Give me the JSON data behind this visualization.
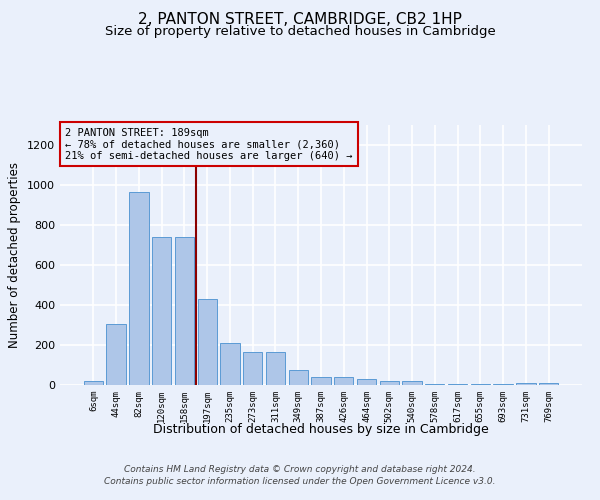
{
  "title1": "2, PANTON STREET, CAMBRIDGE, CB2 1HP",
  "title2": "Size of property relative to detached houses in Cambridge",
  "xlabel": "Distribution of detached houses by size in Cambridge",
  "ylabel": "Number of detached properties",
  "categories": [
    "6sqm",
    "44sqm",
    "82sqm",
    "120sqm",
    "158sqm",
    "197sqm",
    "235sqm",
    "273sqm",
    "311sqm",
    "349sqm",
    "387sqm",
    "426sqm",
    "464sqm",
    "502sqm",
    "540sqm",
    "578sqm",
    "617sqm",
    "655sqm",
    "693sqm",
    "731sqm",
    "769sqm"
  ],
  "values": [
    22,
    305,
    965,
    740,
    740,
    430,
    210,
    165,
    165,
    75,
    40,
    40,
    30,
    18,
    18,
    5,
    5,
    5,
    5,
    12,
    12
  ],
  "bar_color": "#aec6e8",
  "bar_edge_color": "#5b9bd5",
  "vline_x": 4.5,
  "annotation_text1": "2 PANTON STREET: 189sqm",
  "annotation_text2": "← 78% of detached houses are smaller (2,360)",
  "annotation_text3": "21% of semi-detached houses are larger (640) →",
  "vline_color": "#8b0000",
  "box_edge_color": "#cc0000",
  "background_color": "#eaf0fb",
  "grid_color": "#d0d8e8",
  "footnote1": "Contains HM Land Registry data © Crown copyright and database right 2024.",
  "footnote2": "Contains public sector information licensed under the Open Government Licence v3.0.",
  "ylim": [
    0,
    1300
  ],
  "yticks": [
    0,
    200,
    400,
    600,
    800,
    1000,
    1200
  ],
  "title1_fontsize": 11,
  "title2_fontsize": 9.5,
  "xlabel_fontsize": 9,
  "ylabel_fontsize": 8.5
}
